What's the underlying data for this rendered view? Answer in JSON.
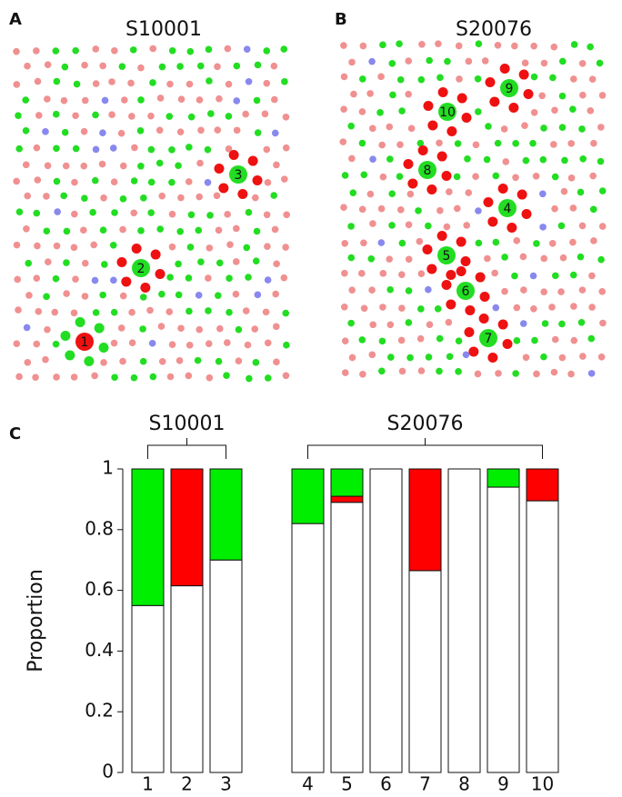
{
  "panels": [
    {
      "letter": "A",
      "title": "S10001",
      "clusters": [
        "1",
        "2",
        "3"
      ]
    },
    {
      "letter": "B",
      "title": "S20076",
      "clusters": [
        "4",
        "5",
        "6",
        "7",
        "8",
        "9",
        "10"
      ]
    }
  ],
  "chart_data": {
    "type": "stacked-bar",
    "letter": "C",
    "y_label": "Proportion",
    "categories": [
      "1",
      "2",
      "3",
      "4",
      "5",
      "6",
      "7",
      "8",
      "9",
      "10"
    ],
    "groups": [
      {
        "label": "S10001",
        "categories": [
          "1",
          "2",
          "3"
        ]
      },
      {
        "label": "S20076",
        "categories": [
          "4",
          "5",
          "6",
          "7",
          "8",
          "9",
          "10"
        ]
      }
    ],
    "series": [
      {
        "color": "#ffffff",
        "values": [
          0.55,
          0.615,
          0.7,
          0.82,
          0.89,
          1,
          0.665,
          1,
          0.94,
          0.895
        ]
      },
      {
        "color": "#ff0000",
        "values": [
          0,
          0.385,
          0,
          0,
          0.02,
          0,
          0.335,
          0,
          0,
          0.105
        ]
      },
      {
        "color": "#00ee00",
        "values": [
          0.45,
          0,
          0.3,
          0.18,
          0.09,
          0,
          0,
          0,
          0.06,
          0
        ]
      }
    ],
    "ylim": [
      0,
      1
    ],
    "yticks": [
      0,
      0.2,
      0.4,
      0.6,
      0.8,
      1
    ]
  }
}
